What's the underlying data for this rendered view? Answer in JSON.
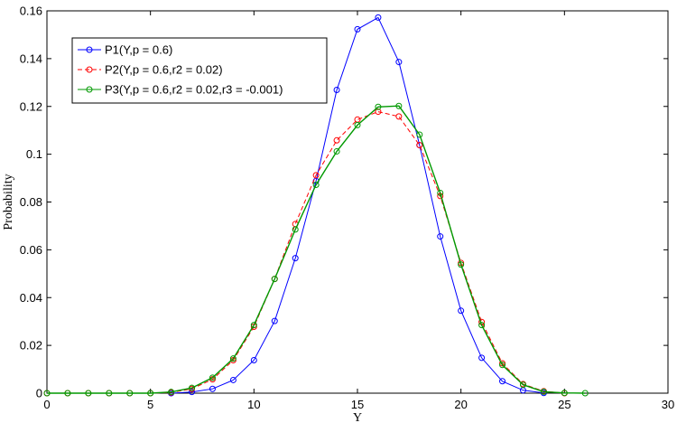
{
  "chart_data": {
    "type": "line",
    "title": "",
    "xlabel": "Y",
    "ylabel": "Probability",
    "xlim": [
      0,
      30
    ],
    "ylim": [
      0,
      0.16
    ],
    "xticks": [
      0,
      5,
      10,
      15,
      20,
      25,
      30
    ],
    "xtick_labels": [
      "0",
      "5",
      "10",
      "15",
      "20",
      "25",
      "30"
    ],
    "yticks": [
      0,
      0.02,
      0.04,
      0.06,
      0.08,
      0.1,
      0.12,
      0.14,
      0.16
    ],
    "ytick_labels": [
      "0",
      "0.02",
      "0.04",
      "0.06",
      "0.08",
      "0.1",
      "0.12",
      "0.14",
      "0.16"
    ],
    "grid": false,
    "legend_position": "top-left",
    "x": [
      0,
      1,
      2,
      3,
      4,
      5,
      6,
      7,
      8,
      9,
      10,
      11,
      12,
      13,
      14,
      15,
      16,
      17,
      18,
      19,
      20,
      21,
      22,
      23,
      24,
      25,
      26
    ],
    "series": [
      {
        "name": "P1(Y,p = 0.6)",
        "color": "#0000ff",
        "line_style": "solid",
        "x": [
          6,
          7,
          8,
          9,
          10,
          11,
          12,
          13,
          14,
          15,
          16,
          17,
          18,
          19,
          20,
          21,
          22,
          23,
          24
        ],
        "values": [
          0.0,
          0.0005,
          0.0018,
          0.0055,
          0.0138,
          0.0302,
          0.0565,
          0.0888,
          0.1269,
          0.1523,
          0.1572,
          0.1386,
          0.1038,
          0.0656,
          0.0345,
          0.0148,
          0.005,
          0.0012,
          0.0001
        ]
      },
      {
        "name": "P2(Y,p = 0.6,r2 = 0.02)",
        "color": "#ff0000",
        "line_style": "dashed",
        "x": [
          0,
          1,
          2,
          3,
          4,
          5,
          6,
          7,
          8,
          9,
          10,
          11,
          12,
          13,
          14,
          15,
          16,
          17,
          18,
          19,
          20,
          21,
          22,
          23,
          24,
          25
        ],
        "values": [
          0.0,
          0.0,
          0.0,
          0.0,
          0.0,
          0.0,
          0.0003,
          0.0018,
          0.0058,
          0.0138,
          0.0278,
          0.0478,
          0.0708,
          0.0912,
          0.1058,
          0.1145,
          0.1178,
          0.1158,
          0.1038,
          0.0825,
          0.0545,
          0.0298,
          0.0125,
          0.0038,
          0.0008,
          0.0
        ]
      },
      {
        "name": "P3(Y,p = 0.6,r2 = 0.02,r3 = -0.001)",
        "color": "#009900",
        "line_style": "solid",
        "x": [
          0,
          1,
          2,
          3,
          4,
          5,
          6,
          7,
          8,
          9,
          10,
          11,
          12,
          13,
          14,
          15,
          16,
          17,
          18,
          19,
          20,
          21,
          22,
          23,
          24,
          25,
          26
        ],
        "values": [
          0.0,
          0.0,
          0.0,
          0.0,
          0.0,
          0.0,
          0.0005,
          0.0022,
          0.0065,
          0.0145,
          0.0285,
          0.0478,
          0.0685,
          0.0872,
          0.1012,
          0.1122,
          0.1198,
          0.1202,
          0.1082,
          0.0838,
          0.0538,
          0.0285,
          0.0118,
          0.0035,
          0.0006,
          0.0001,
          0.0
        ]
      }
    ]
  }
}
